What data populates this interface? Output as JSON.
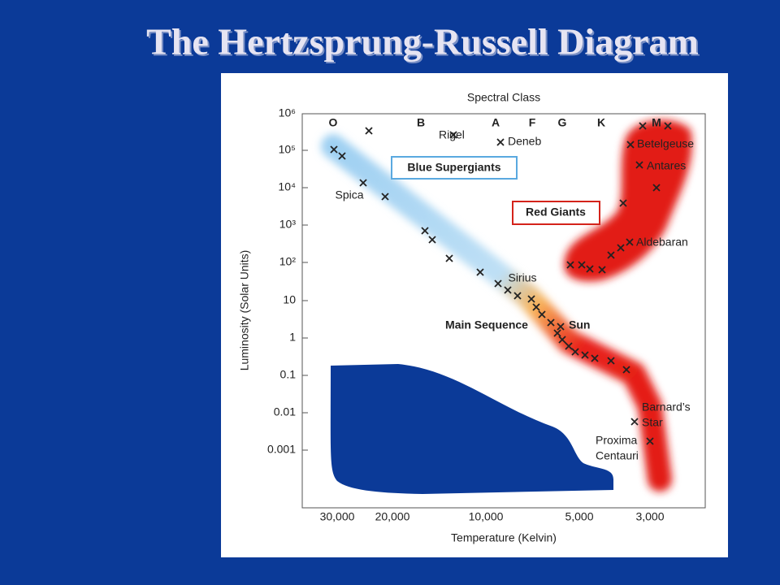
{
  "title": "The Hertzsprung-Russell Diagram",
  "diagram": {
    "heading": "Spectral Class",
    "x_axis_label": "Temperature (Kelvin)",
    "y_axis_label": "Luminosity (Solar Units)",
    "spectral_classes": [
      "O",
      "B",
      "A",
      "F",
      "G",
      "K",
      "M"
    ],
    "y_tick_labels": [
      "10⁶",
      "10⁵",
      "10⁴",
      "10³",
      "10²",
      "10",
      "1",
      "0.1",
      "0.01",
      "0.001"
    ],
    "x_tick_labels": [
      "30,000",
      "20,000",
      "10,000",
      "5,000",
      "3,000"
    ],
    "regions": [
      "Blue Supergiants",
      "Red Giants",
      "Main Sequence"
    ],
    "stars": [
      {
        "lines": [
          "Rigel"
        ]
      },
      {
        "lines": [
          "Deneb"
        ]
      },
      {
        "lines": [
          "Spica"
        ]
      },
      {
        "lines": [
          "Sirius"
        ]
      },
      {
        "lines": [
          "Sun"
        ]
      },
      {
        "lines": [
          "Betelgeuse"
        ]
      },
      {
        "lines": [
          "Antares"
        ]
      },
      {
        "lines": [
          "Aldebaran"
        ]
      },
      {
        "lines": [
          "Barnard’s",
          "Star"
        ]
      },
      {
        "lines": [
          "Proxima",
          "Centauri"
        ]
      }
    ]
  }
}
